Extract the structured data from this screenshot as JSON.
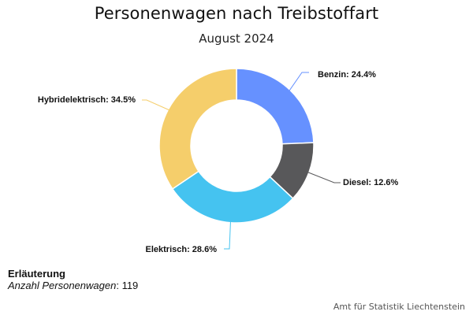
{
  "chart_data": {
    "type": "pie",
    "variant": "donut",
    "title": "Personenwagen nach Treibstoffart",
    "subtitle": "August 2024",
    "unit": "%",
    "start": "12 o'clock, clockwise",
    "slices": [
      {
        "label": "Benzin",
        "value": 24.4,
        "color": "#6691FF",
        "text": "Benzin: 24.4%"
      },
      {
        "label": "Diesel",
        "value": 12.6,
        "color": "#58585A",
        "text": "Diesel: 12.6%"
      },
      {
        "label": "Elektrisch",
        "value": 28.6,
        "color": "#45C3F0",
        "text": "Elektrisch: 28.6%"
      },
      {
        "label": "Hybridelektrisch",
        "value": 34.5,
        "color": "#F5CE6B",
        "text": "Hybridelektrisch: 34.5%"
      }
    ]
  },
  "note": {
    "heading": "Erläuterung",
    "label": "Anzahl Personenwagen",
    "separator": ": ",
    "value": "119"
  },
  "credit": "Amt für Statistik Liechtenstein"
}
